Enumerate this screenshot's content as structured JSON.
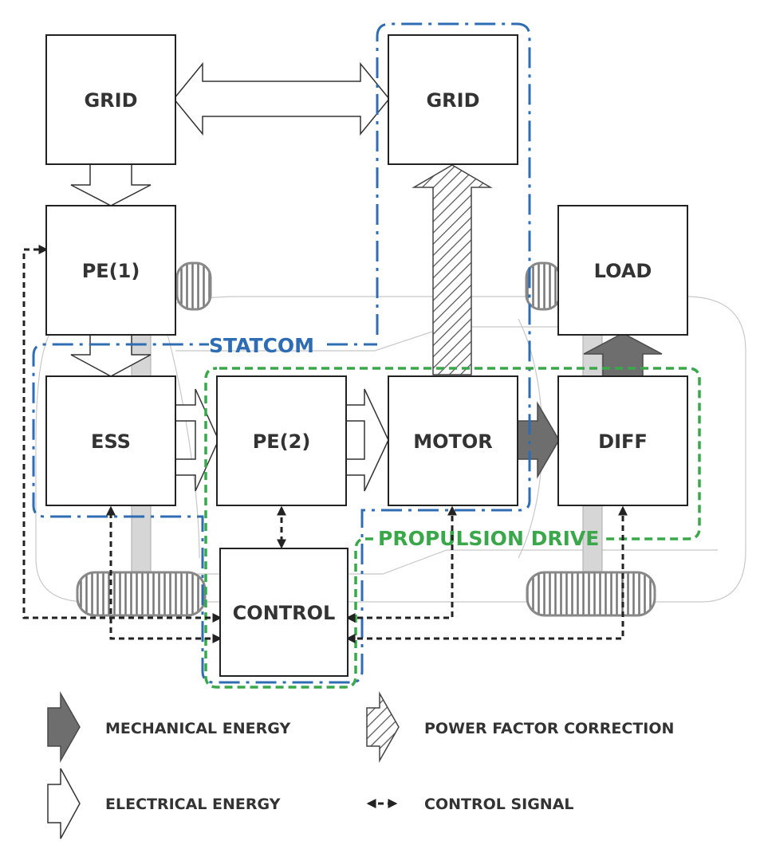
{
  "blocks": {
    "grid_left": "GRID",
    "grid_right": "GRID",
    "pe1": "PE(1)",
    "load": "LOAD",
    "ess": "ESS",
    "pe2": "PE(2)",
    "motor": "MOTOR",
    "diff": "DIFF",
    "control": "CONTROL"
  },
  "regions": {
    "statcom": {
      "label": "STATCOM",
      "color": "#2e6db4"
    },
    "propulsion": {
      "label": "PROPULSION DRIVE",
      "color": "#3aa84a"
    }
  },
  "legend": {
    "mechanical": "MECHANICAL ENERGY",
    "electrical": "ELECTRICAL ENERGY",
    "pfc": "POWER FACTOR CORRECTION",
    "control": "CONTROL SIGNAL"
  },
  "colors": {
    "block_border": "#222222",
    "mechanical_fill": "#6e6e6e",
    "electrical_fill": "#ffffff",
    "control_line": "#222222"
  }
}
